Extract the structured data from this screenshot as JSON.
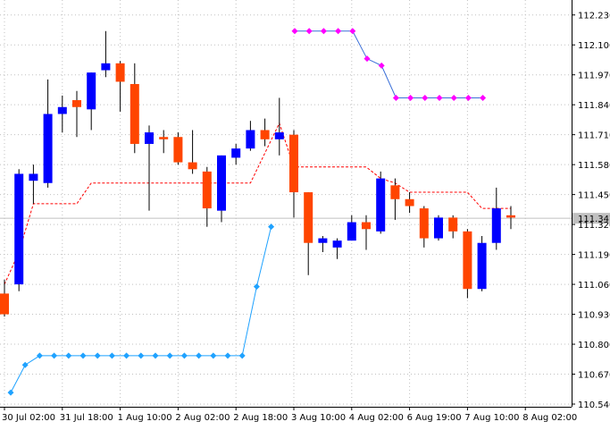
{
  "chart_data": {
    "type": "candlestick",
    "title": "",
    "xlabel": "",
    "ylabel": "",
    "ylim": [
      110.54,
      112.295
    ],
    "grid": true,
    "y_ticks": [
      "112.230",
      "112.100",
      "111.970",
      "111.840",
      "111.710",
      "111.580",
      "111.450",
      "111.320",
      "111.190",
      "111.060",
      "110.930",
      "110.800",
      "110.670",
      "110.540"
    ],
    "x_ticks": [
      "30 Jul 02:00",
      "31 Jul 18:00",
      "1 Aug 10:00",
      "2 Aug 02:00",
      "2 Aug 18:00",
      "3 Aug 10:00",
      "4 Aug 02:00",
      "6 Aug 19:00",
      "7 Aug 10:00",
      "8 Aug 02:00"
    ],
    "x_tick_index": [
      0,
      4,
      8,
      12,
      16,
      20,
      24,
      28,
      32,
      36
    ],
    "current_price": "111.347",
    "colors": {
      "bull": "#0000ff",
      "bear": "#ff4500",
      "wick": "#000000",
      "dashed_line": "#ff0000",
      "lower_dots": "#1fa2ff",
      "upper_dots": "#ff00ff",
      "grid": "#c0c0c0",
      "current_line": "#c0c0c0"
    },
    "candles": [
      {
        "o": 111.02,
        "h": 111.08,
        "l": 110.92,
        "c": 110.93
      },
      {
        "o": 111.06,
        "h": 111.56,
        "l": 111.03,
        "c": 111.54
      },
      {
        "o": 111.51,
        "h": 111.58,
        "l": 111.41,
        "c": 111.54
      },
      {
        "o": 111.5,
        "h": 111.95,
        "l": 111.48,
        "c": 111.8
      },
      {
        "o": 111.8,
        "h": 111.88,
        "l": 111.72,
        "c": 111.83
      },
      {
        "o": 111.86,
        "h": 111.9,
        "l": 111.7,
        "c": 111.83
      },
      {
        "o": 111.82,
        "h": 111.98,
        "l": 111.73,
        "c": 111.98
      },
      {
        "o": 111.99,
        "h": 112.16,
        "l": 111.96,
        "c": 112.02
      },
      {
        "o": 112.02,
        "h": 112.03,
        "l": 111.81,
        "c": 111.94
      },
      {
        "o": 111.93,
        "h": 112.02,
        "l": 111.63,
        "c": 111.67
      },
      {
        "o": 111.67,
        "h": 111.75,
        "l": 111.38,
        "c": 111.72
      },
      {
        "o": 111.7,
        "h": 111.73,
        "l": 111.63,
        "c": 111.69
      },
      {
        "o": 111.7,
        "h": 111.72,
        "l": 111.58,
        "c": 111.59
      },
      {
        "o": 111.59,
        "h": 111.73,
        "l": 111.54,
        "c": 111.56
      },
      {
        "o": 111.55,
        "h": 111.57,
        "l": 111.31,
        "c": 111.39
      },
      {
        "o": 111.38,
        "h": 111.62,
        "l": 111.33,
        "c": 111.62
      },
      {
        "o": 111.61,
        "h": 111.67,
        "l": 111.58,
        "c": 111.65
      },
      {
        "o": 111.65,
        "h": 111.77,
        "l": 111.64,
        "c": 111.73
      },
      {
        "o": 111.73,
        "h": 111.78,
        "l": 111.66,
        "c": 111.69
      },
      {
        "o": 111.69,
        "h": 111.87,
        "l": 111.62,
        "c": 111.72
      },
      {
        "o": 111.71,
        "h": 111.73,
        "l": 111.35,
        "c": 111.46
      },
      {
        "o": 111.46,
        "h": 111.46,
        "l": 111.1,
        "c": 111.24
      },
      {
        "o": 111.24,
        "h": 111.27,
        "l": 111.2,
        "c": 111.26
      },
      {
        "o": 111.22,
        "h": 111.26,
        "l": 111.17,
        "c": 111.25
      },
      {
        "o": 111.25,
        "h": 111.36,
        "l": 111.25,
        "c": 111.33
      },
      {
        "o": 111.33,
        "h": 111.36,
        "l": 111.21,
        "c": 111.3
      },
      {
        "o": 111.29,
        "h": 111.55,
        "l": 111.28,
        "c": 111.52
      },
      {
        "o": 111.49,
        "h": 111.52,
        "l": 111.34,
        "c": 111.43
      },
      {
        "o": 111.43,
        "h": 111.46,
        "l": 111.37,
        "c": 111.4
      },
      {
        "o": 111.39,
        "h": 111.4,
        "l": 111.22,
        "c": 111.26
      },
      {
        "o": 111.26,
        "h": 111.36,
        "l": 111.25,
        "c": 111.35
      },
      {
        "o": 111.35,
        "h": 111.36,
        "l": 111.26,
        "c": 111.29
      },
      {
        "o": 111.29,
        "h": 111.3,
        "l": 111.0,
        "c": 111.04
      },
      {
        "o": 111.04,
        "h": 111.27,
        "l": 111.03,
        "c": 111.24
      },
      {
        "o": 111.24,
        "h": 111.48,
        "l": 111.21,
        "c": 111.39
      },
      {
        "o": 111.36,
        "h": 111.4,
        "l": 111.3,
        "c": 111.35
      }
    ],
    "dashed_line": [
      111.06,
      111.2,
      111.41,
      111.41,
      111.41,
      111.41,
      111.5,
      111.5,
      111.5,
      111.5,
      111.5,
      111.5,
      111.5,
      111.5,
      111.5,
      111.5,
      111.5,
      111.5,
      111.63,
      111.76,
      111.57,
      111.57,
      111.57,
      111.57,
      111.57,
      111.57,
      111.52,
      111.5,
      111.46,
      111.46,
      111.46,
      111.46,
      111.46,
      111.39,
      111.39,
      111.39
    ],
    "lower_dots": [
      110.59,
      110.71,
      110.75,
      110.75,
      110.75,
      110.75,
      110.75,
      110.75,
      110.75,
      110.75,
      110.75,
      110.75,
      110.75,
      110.75,
      110.75,
      110.75,
      110.75,
      111.05,
      111.31
    ],
    "lower_dots_start": 0,
    "upper_dots": [
      112.16,
      112.16,
      112.16,
      112.16,
      112.16,
      112.04,
      112.01,
      111.87,
      111.87,
      111.87,
      111.87,
      111.87,
      111.87,
      111.87
    ],
    "upper_dots_start": 20
  }
}
